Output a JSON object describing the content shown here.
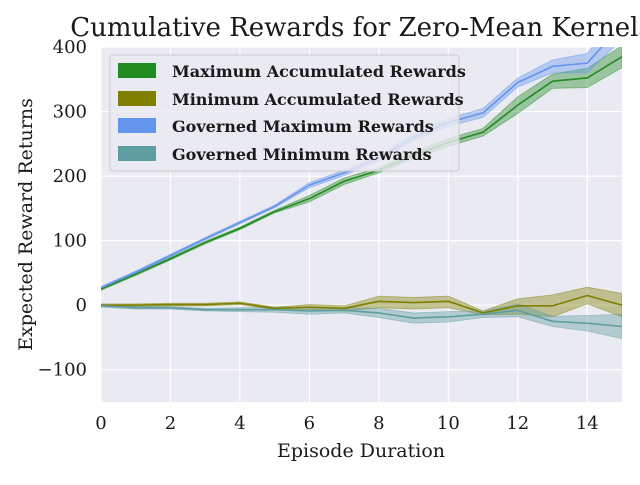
{
  "chart_data": {
    "type": "line",
    "title": "Cumulative Rewards for Zero-Mean Kernels",
    "xlabel": "Episode Duration",
    "ylabel": "Expected Reward Returns",
    "xlim": [
      0,
      15
    ],
    "ylim": [
      -150,
      400
    ],
    "xticks": [
      0,
      2,
      4,
      6,
      8,
      10,
      12,
      14
    ],
    "xtick_labels": [
      "0",
      "2",
      "4",
      "6",
      "8",
      "10",
      "12",
      "14"
    ],
    "yticks": [
      -100,
      0,
      100,
      200,
      300,
      400
    ],
    "ytick_labels": [
      "−100",
      "0",
      "100",
      "200",
      "300",
      "400"
    ],
    "grid": true,
    "legend_position": "top-left",
    "background": "#eaeaf2",
    "x": [
      0,
      1,
      2,
      3,
      4,
      5,
      6,
      7,
      8,
      9,
      10,
      11,
      12,
      13,
      14,
      15
    ],
    "series": [
      {
        "name": "Maximum Accumulated Rewards",
        "color": "#228b22",
        "values": [
          25,
          48,
          72,
          97,
          119,
          145,
          165,
          192,
          209,
          232,
          252,
          268,
          310,
          347,
          352,
          385
        ],
        "lower": [
          23,
          46,
          70,
          95,
          117,
          143,
          160,
          187,
          205,
          227,
          246,
          262,
          297,
          336,
          337,
          368
        ],
        "upper": [
          27,
          50,
          74,
          99,
          121,
          147,
          170,
          197,
          213,
          237,
          258,
          274,
          323,
          358,
          367,
          402
        ]
      },
      {
        "name": "Minimum Accumulated Rewards",
        "color": "#808000",
        "values": [
          0,
          0,
          1,
          1,
          3,
          -5,
          -3,
          -5,
          6,
          4,
          6,
          -12,
          -1,
          -1,
          15,
          0
        ],
        "lower": [
          -2,
          -2,
          -1,
          -1,
          1,
          -7,
          -7,
          -9,
          -4,
          -6,
          -4,
          -15,
          -14,
          -18,
          2,
          -18
        ],
        "upper": [
          2,
          2,
          3,
          3,
          5,
          -3,
          1,
          -1,
          14,
          12,
          14,
          -9,
          10,
          16,
          28,
          18
        ]
      },
      {
        "name": "Governed Maximum Rewards",
        "color": "#6495ed",
        "values": [
          27,
          51,
          77,
          103,
          128,
          153,
          186,
          205,
          228,
          260,
          283,
          298,
          345,
          370,
          375,
          435
        ],
        "lower": [
          25,
          49,
          75,
          101,
          126,
          151,
          182,
          201,
          224,
          255,
          277,
          291,
          338,
          360,
          360,
          412
        ],
        "upper": [
          29,
          53,
          79,
          105,
          130,
          155,
          190,
          209,
          232,
          265,
          289,
          305,
          352,
          380,
          390,
          458
        ]
      },
      {
        "name": "Governed Minimum Rewards",
        "color": "#5f9ea0",
        "values": [
          -1,
          -4,
          -4,
          -7,
          -7,
          -7,
          -9,
          -8,
          -12,
          -20,
          -18,
          -14,
          -8,
          -25,
          -28,
          -33
        ],
        "lower": [
          -3,
          -6,
          -6,
          -9,
          -10,
          -11,
          -14,
          -12,
          -19,
          -28,
          -26,
          -19,
          -18,
          -33,
          -40,
          -52
        ],
        "upper": [
          1,
          -2,
          -2,
          -5,
          -4,
          -3,
          -4,
          -4,
          -5,
          -12,
          -10,
          -9,
          2,
          -17,
          -16,
          -14
        ]
      }
    ]
  }
}
